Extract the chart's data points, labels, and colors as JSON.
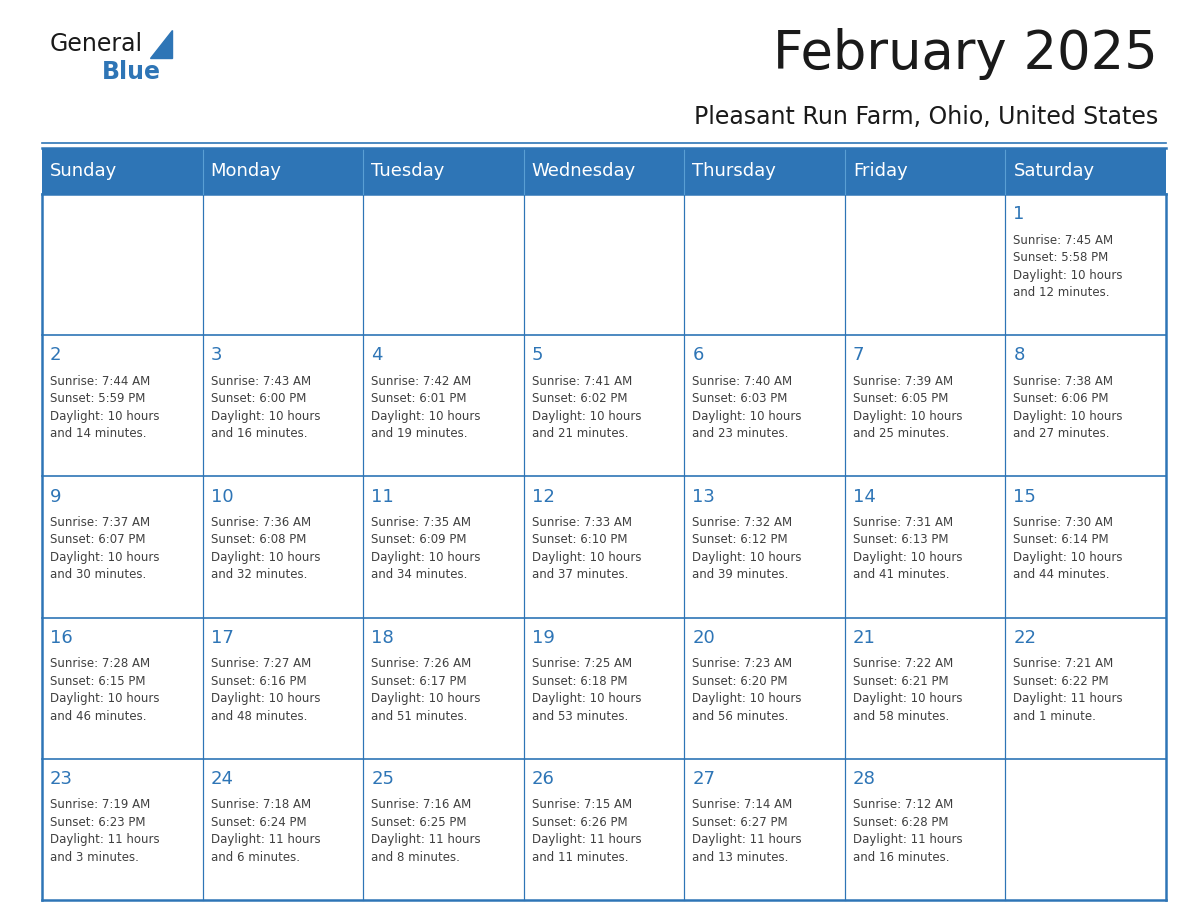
{
  "title": "February 2025",
  "subtitle": "Pleasant Run Farm, Ohio, United States",
  "header_color": "#2e75b6",
  "header_text_color": "#ffffff",
  "cell_border_color": "#2e75b6",
  "background_color": "#ffffff",
  "text_color": "#404040",
  "day_number_color": "#2e75b6",
  "days_of_week": [
    "Sunday",
    "Monday",
    "Tuesday",
    "Wednesday",
    "Thursday",
    "Friday",
    "Saturday"
  ],
  "weeks": [
    [
      {
        "day": 0,
        "info": ""
      },
      {
        "day": 0,
        "info": ""
      },
      {
        "day": 0,
        "info": ""
      },
      {
        "day": 0,
        "info": ""
      },
      {
        "day": 0,
        "info": ""
      },
      {
        "day": 0,
        "info": ""
      },
      {
        "day": 1,
        "info": "Sunrise: 7:45 AM\nSunset: 5:58 PM\nDaylight: 10 hours\nand 12 minutes."
      }
    ],
    [
      {
        "day": 2,
        "info": "Sunrise: 7:44 AM\nSunset: 5:59 PM\nDaylight: 10 hours\nand 14 minutes."
      },
      {
        "day": 3,
        "info": "Sunrise: 7:43 AM\nSunset: 6:00 PM\nDaylight: 10 hours\nand 16 minutes."
      },
      {
        "day": 4,
        "info": "Sunrise: 7:42 AM\nSunset: 6:01 PM\nDaylight: 10 hours\nand 19 minutes."
      },
      {
        "day": 5,
        "info": "Sunrise: 7:41 AM\nSunset: 6:02 PM\nDaylight: 10 hours\nand 21 minutes."
      },
      {
        "day": 6,
        "info": "Sunrise: 7:40 AM\nSunset: 6:03 PM\nDaylight: 10 hours\nand 23 minutes."
      },
      {
        "day": 7,
        "info": "Sunrise: 7:39 AM\nSunset: 6:05 PM\nDaylight: 10 hours\nand 25 minutes."
      },
      {
        "day": 8,
        "info": "Sunrise: 7:38 AM\nSunset: 6:06 PM\nDaylight: 10 hours\nand 27 minutes."
      }
    ],
    [
      {
        "day": 9,
        "info": "Sunrise: 7:37 AM\nSunset: 6:07 PM\nDaylight: 10 hours\nand 30 minutes."
      },
      {
        "day": 10,
        "info": "Sunrise: 7:36 AM\nSunset: 6:08 PM\nDaylight: 10 hours\nand 32 minutes."
      },
      {
        "day": 11,
        "info": "Sunrise: 7:35 AM\nSunset: 6:09 PM\nDaylight: 10 hours\nand 34 minutes."
      },
      {
        "day": 12,
        "info": "Sunrise: 7:33 AM\nSunset: 6:10 PM\nDaylight: 10 hours\nand 37 minutes."
      },
      {
        "day": 13,
        "info": "Sunrise: 7:32 AM\nSunset: 6:12 PM\nDaylight: 10 hours\nand 39 minutes."
      },
      {
        "day": 14,
        "info": "Sunrise: 7:31 AM\nSunset: 6:13 PM\nDaylight: 10 hours\nand 41 minutes."
      },
      {
        "day": 15,
        "info": "Sunrise: 7:30 AM\nSunset: 6:14 PM\nDaylight: 10 hours\nand 44 minutes."
      }
    ],
    [
      {
        "day": 16,
        "info": "Sunrise: 7:28 AM\nSunset: 6:15 PM\nDaylight: 10 hours\nand 46 minutes."
      },
      {
        "day": 17,
        "info": "Sunrise: 7:27 AM\nSunset: 6:16 PM\nDaylight: 10 hours\nand 48 minutes."
      },
      {
        "day": 18,
        "info": "Sunrise: 7:26 AM\nSunset: 6:17 PM\nDaylight: 10 hours\nand 51 minutes."
      },
      {
        "day": 19,
        "info": "Sunrise: 7:25 AM\nSunset: 6:18 PM\nDaylight: 10 hours\nand 53 minutes."
      },
      {
        "day": 20,
        "info": "Sunrise: 7:23 AM\nSunset: 6:20 PM\nDaylight: 10 hours\nand 56 minutes."
      },
      {
        "day": 21,
        "info": "Sunrise: 7:22 AM\nSunset: 6:21 PM\nDaylight: 10 hours\nand 58 minutes."
      },
      {
        "day": 22,
        "info": "Sunrise: 7:21 AM\nSunset: 6:22 PM\nDaylight: 11 hours\nand 1 minute."
      }
    ],
    [
      {
        "day": 23,
        "info": "Sunrise: 7:19 AM\nSunset: 6:23 PM\nDaylight: 11 hours\nand 3 minutes."
      },
      {
        "day": 24,
        "info": "Sunrise: 7:18 AM\nSunset: 6:24 PM\nDaylight: 11 hours\nand 6 minutes."
      },
      {
        "day": 25,
        "info": "Sunrise: 7:16 AM\nSunset: 6:25 PM\nDaylight: 11 hours\nand 8 minutes."
      },
      {
        "day": 26,
        "info": "Sunrise: 7:15 AM\nSunset: 6:26 PM\nDaylight: 11 hours\nand 11 minutes."
      },
      {
        "day": 27,
        "info": "Sunrise: 7:14 AM\nSunset: 6:27 PM\nDaylight: 11 hours\nand 13 minutes."
      },
      {
        "day": 28,
        "info": "Sunrise: 7:12 AM\nSunset: 6:28 PM\nDaylight: 11 hours\nand 16 minutes."
      },
      {
        "day": 0,
        "info": ""
      }
    ]
  ],
  "logo_text_general": "General",
  "logo_text_blue": "Blue",
  "logo_triangle_color": "#2e75b6",
  "figsize": [
    11.88,
    9.18
  ],
  "dpi": 100
}
